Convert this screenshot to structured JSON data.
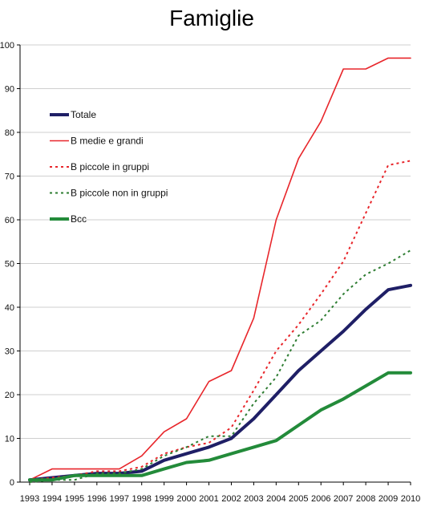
{
  "chart_data": {
    "type": "line",
    "title": "Famiglie",
    "xlabel": "",
    "ylabel": "",
    "ylim": [
      0,
      100
    ],
    "yticks": [
      0,
      10,
      20,
      30,
      40,
      50,
      60,
      70,
      80,
      90,
      100
    ],
    "grid": "horizontal",
    "legend_position": "upper-left",
    "categories": [
      "1993",
      "1994",
      "1995",
      "1996",
      "1997",
      "1998",
      "1999",
      "2000",
      "2001",
      "2002",
      "2003",
      "2004",
      "2005",
      "2006",
      "2007",
      "2008",
      "2009",
      "2010"
    ],
    "series": [
      {
        "name": "Totale",
        "color": "#1f1f66",
        "style": "solid",
        "width": 4,
        "values": [
          0.5,
          1.0,
          1.5,
          2.0,
          2.0,
          2.5,
          5.0,
          6.5,
          8.0,
          10.0,
          14.5,
          20.0,
          25.5,
          30.0,
          34.5,
          39.5,
          44.0,
          45.0
        ]
      },
      {
        "name": "B medie e grandi",
        "color": "#e8262b",
        "style": "solid",
        "width": 1.6,
        "values": [
          0.5,
          3.0,
          3.0,
          3.0,
          3.0,
          6.0,
          11.5,
          14.5,
          23.0,
          25.5,
          37.5,
          60.0,
          74.0,
          82.5,
          94.5,
          94.5,
          97.0,
          97.0
        ]
      },
      {
        "name": "B piccole in gruppi",
        "color": "#e8262b",
        "style": "dotted",
        "width": 2,
        "values": [
          0.5,
          1.0,
          1.5,
          2.5,
          2.5,
          3.5,
          6.5,
          8.0,
          9.0,
          12.5,
          21.0,
          30.0,
          36.0,
          43.0,
          50.5,
          61.5,
          72.5,
          73.5
        ]
      },
      {
        "name": "B piccole non in gruppi",
        "color": "#2e7d32",
        "style": "dotted",
        "width": 2,
        "values": [
          0.0,
          0.5,
          0.5,
          2.0,
          2.0,
          3.0,
          6.0,
          8.0,
          10.5,
          10.5,
          18.0,
          24.0,
          33.5,
          37.0,
          43.0,
          47.5,
          50.0,
          53.0
        ]
      },
      {
        "name": "Bcc",
        "color": "#238b3a",
        "style": "solid",
        "width": 4,
        "values": [
          0.5,
          0.5,
          1.5,
          1.5,
          1.5,
          1.5,
          3.0,
          4.5,
          5.0,
          6.5,
          8.0,
          9.5,
          13.0,
          16.5,
          19.0,
          22.0,
          25.0,
          25.0
        ]
      }
    ]
  }
}
